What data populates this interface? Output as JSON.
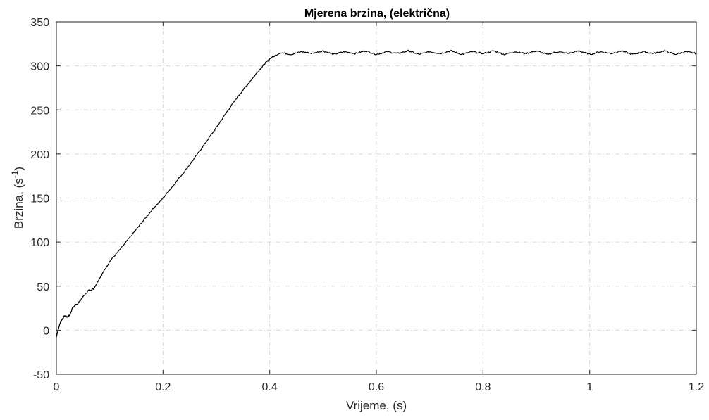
{
  "chart_data": {
    "type": "line",
    "title": "Mjerena brzina, (električna)",
    "xlabel": "Vrijeme, (s)",
    "ylabel": "Brzina, (s",
    "ylabel_superscript": "-1",
    "ylabel_suffix": ")",
    "xlim": [
      0,
      1.2
    ],
    "ylim": [
      -50,
      350
    ],
    "x_ticks": [
      0,
      0.2,
      0.4,
      0.6,
      0.8,
      1,
      1.2
    ],
    "x_tick_labels": [
      "0",
      "0.2",
      "0.4",
      "0.6",
      "0.8",
      "1",
      "1.2"
    ],
    "y_ticks": [
      -50,
      0,
      50,
      100,
      150,
      200,
      250,
      300,
      350
    ],
    "y_tick_labels": [
      "-50",
      "0",
      "50",
      "100",
      "150",
      "200",
      "250",
      "300",
      "350"
    ],
    "grid": true,
    "line_color": "#000000",
    "series": [
      {
        "x": [
          0,
          0.003,
          0.008,
          0.015,
          0.02,
          0.025,
          0.03,
          0.035,
          0.04,
          0.05,
          0.06,
          0.07,
          0.08,
          0.09,
          0.1,
          0.12,
          0.14,
          0.16,
          0.18,
          0.2,
          0.22,
          0.24,
          0.26,
          0.28,
          0.3,
          0.32,
          0.34,
          0.36,
          0.38,
          0.39,
          0.4,
          0.42,
          0.44,
          0.46,
          0.48,
          0.5,
          0.52,
          0.54,
          0.56,
          0.58,
          0.6,
          0.62,
          0.64,
          0.66,
          0.68,
          0.7,
          0.72,
          0.74,
          0.76,
          0.78,
          0.8,
          0.82,
          0.84,
          0.86,
          0.88,
          0.9,
          0.92,
          0.94,
          0.96,
          0.98,
          1.0,
          1.02,
          1.04,
          1.06,
          1.08,
          1.1,
          1.12,
          1.14,
          1.16,
          1.18,
          1.2
        ],
        "y": [
          -8,
          0,
          10,
          16,
          15,
          17,
          25,
          28,
          30,
          38,
          45,
          47,
          58,
          68,
          78,
          92,
          107,
          122,
          137,
          150,
          165,
          180,
          196,
          213,
          230,
          248,
          265,
          280,
          295,
          302,
          308,
          315,
          313,
          316,
          314,
          317,
          313,
          316,
          314,
          317,
          313,
          316,
          314,
          317,
          313,
          316,
          314,
          317,
          313,
          316,
          314,
          317,
          313,
          316,
          314,
          317,
          313,
          316,
          314,
          317,
          313,
          316,
          314,
          317,
          313,
          316,
          314,
          317,
          313,
          316,
          314
        ]
      }
    ]
  }
}
